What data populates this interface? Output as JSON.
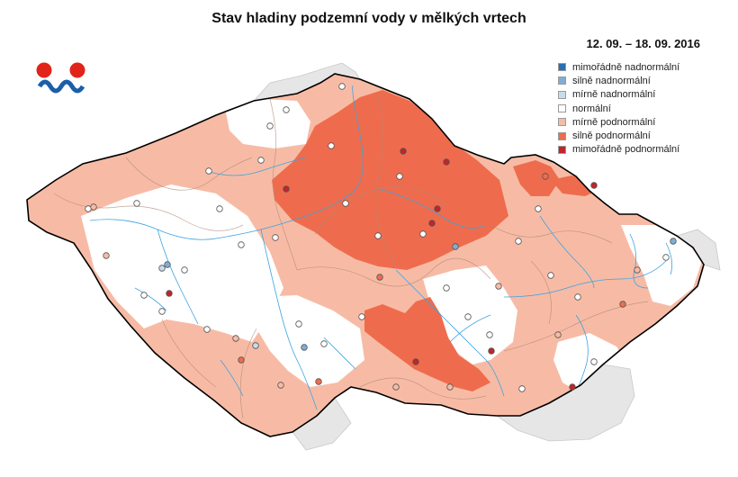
{
  "title": "Stav hladiny podzemní vody v mělkých vrtech",
  "date_range": "12. 09. – 18. 09. 2016",
  "logo": {
    "icon": "chmi-logo-icon"
  },
  "legend": [
    {
      "label": "mimořádně nadnormální",
      "color": "#2a6db5"
    },
    {
      "label": "silně nadnormální",
      "color": "#7eaed6"
    },
    {
      "label": "mírně nadnormální",
      "color": "#c7dceb"
    },
    {
      "label": "normální",
      "color": "#ffffff"
    },
    {
      "label": "mírně podnormální",
      "color": "#f7bba5"
    },
    {
      "label": "silně podnormální",
      "color": "#ee6c4d"
    },
    {
      "label": "mimořádně podnormální",
      "color": "#c0252a"
    }
  ]
}
